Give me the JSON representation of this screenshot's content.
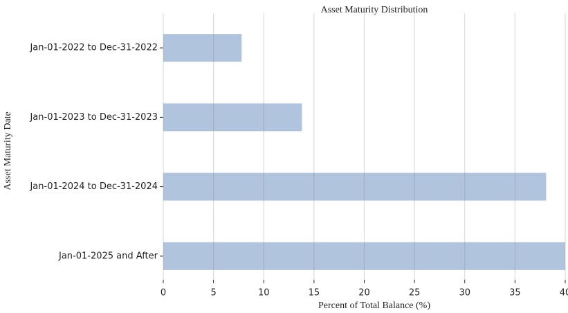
{
  "chart_data": {
    "type": "barh",
    "title": "Asset Maturity Distribution",
    "x_label": "Percent of Total Balance (%)",
    "y_label": "Asset Maturity Date",
    "categories": [
      "Jan-01-2022  to  Dec-31-2022",
      "Jan-01-2023  to  Dec-31-2023",
      "Jan-01-2024  to  Dec-31-2024",
      "Jan-01-2025 and After"
    ],
    "values": [
      7.8,
      13.8,
      38.1,
      40.0
    ],
    "color": "#b0c4de",
    "xlim": [
      0,
      40
    ],
    "xticks": [
      0,
      5,
      10,
      15,
      20,
      25,
      30,
      35,
      40
    ],
    "grid": true
  }
}
